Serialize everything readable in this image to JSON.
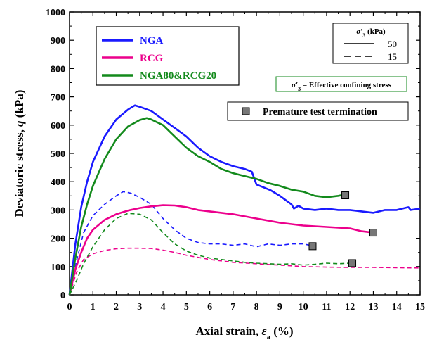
{
  "chart_data": {
    "type": "line",
    "xlabel_main": "Axial strain, ",
    "xlabel_var": "ε",
    "xlabel_sub": "a",
    "xlabel_unit": " (%)",
    "ylabel_main": "Deviatoric stress, ",
    "ylabel_var": "q",
    "ylabel_unit": " (kPa)",
    "xlim": [
      0,
      15
    ],
    "ylim": [
      0,
      1000
    ],
    "xticks": [
      "0",
      "1",
      "2",
      "3",
      "4",
      "5",
      "6",
      "7",
      "8",
      "9",
      "10",
      "11",
      "12",
      "13",
      "14",
      "15"
    ],
    "yticks": [
      "0",
      "100",
      "200",
      "300",
      "400",
      "500",
      "600",
      "700",
      "800",
      "900",
      "1000"
    ],
    "grid": false,
    "legend_placement": "top-left",
    "series": [
      {
        "name": "NGA",
        "color": "#1a1aff",
        "confining": "50",
        "dash": "solid",
        "x": [
          0,
          0.25,
          0.5,
          0.75,
          1,
          1.5,
          2,
          2.5,
          2.8,
          3,
          3.5,
          4,
          4.5,
          5,
          5.5,
          6,
          6.5,
          7,
          7.5,
          7.8,
          8,
          8.3,
          8.6,
          9,
          9.5,
          9.6,
          9.8,
          10,
          10.5,
          11,
          11.5,
          12,
          12.5,
          13,
          13.5,
          14,
          14.5,
          14.6,
          15
        ],
        "y": [
          0,
          180,
          310,
          400,
          470,
          560,
          620,
          655,
          670,
          665,
          650,
          620,
          590,
          560,
          520,
          490,
          470,
          455,
          445,
          435,
          390,
          380,
          370,
          350,
          320,
          305,
          315,
          305,
          300,
          305,
          300,
          300,
          295,
          290,
          300,
          300,
          310,
          300,
          305
        ]
      },
      {
        "name": "NGA",
        "color": "#1a1aff",
        "confining": "15",
        "dash": "dashed",
        "x": [
          0,
          0.3,
          0.6,
          1,
          1.5,
          2,
          2.3,
          2.6,
          3,
          3.5,
          4,
          4.5,
          5,
          5.5,
          6,
          6.5,
          7,
          7.5,
          8,
          8.5,
          9,
          9.5,
          10,
          10.3
        ],
        "y": [
          0,
          120,
          220,
          280,
          320,
          350,
          365,
          360,
          345,
          320,
          270,
          230,
          200,
          185,
          180,
          180,
          175,
          180,
          170,
          180,
          175,
          180,
          180,
          175
        ]
      },
      {
        "name": "RCG",
        "color": "#ec008c",
        "confining": "50",
        "dash": "solid",
        "x": [
          0,
          0.25,
          0.5,
          0.75,
          1,
          1.5,
          2,
          2.5,
          3,
          3.5,
          4,
          4.5,
          5,
          5.5,
          6,
          7,
          8,
          9,
          10,
          11,
          12,
          12.5,
          13
        ],
        "y": [
          0,
          90,
          150,
          200,
          230,
          265,
          285,
          298,
          307,
          313,
          317,
          316,
          310,
          300,
          295,
          285,
          270,
          255,
          245,
          240,
          235,
          225,
          220
        ]
      },
      {
        "name": "RCG",
        "color": "#ec008c",
        "confining": "15",
        "dash": "dashed",
        "x": [
          0,
          0.3,
          0.6,
          1,
          1.5,
          2,
          2.5,
          3,
          3.5,
          4,
          4.5,
          5,
          6,
          7,
          8,
          9,
          10,
          11,
          12,
          13,
          14,
          15
        ],
        "y": [
          0,
          80,
          125,
          145,
          157,
          163,
          165,
          165,
          164,
          158,
          150,
          140,
          125,
          115,
          110,
          105,
          100,
          98,
          97,
          97,
          96,
          95
        ]
      },
      {
        "name": "NGA80&RCG20",
        "color": "#138a1c",
        "confining": "50",
        "dash": "solid",
        "x": [
          0,
          0.25,
          0.5,
          0.75,
          1,
          1.5,
          2,
          2.5,
          3,
          3.3,
          3.5,
          4,
          4.5,
          5,
          5.5,
          6,
          6.5,
          7,
          7.5,
          8,
          8.5,
          9,
          9.5,
          10,
          10.5,
          11,
          11.5,
          11.8
        ],
        "y": [
          0,
          130,
          240,
          320,
          385,
          480,
          550,
          595,
          618,
          625,
          620,
          600,
          560,
          520,
          490,
          470,
          445,
          430,
          420,
          410,
          395,
          385,
          372,
          365,
          350,
          345,
          350,
          355
        ]
      },
      {
        "name": "NGA80&RCG20",
        "color": "#138a1c",
        "confining": "15",
        "dash": "dashed",
        "x": [
          0,
          0.3,
          0.6,
          1,
          1.5,
          2,
          2.5,
          3,
          3.5,
          4,
          4.5,
          5,
          5.5,
          6,
          6.5,
          7,
          7.5,
          8,
          8.5,
          9,
          9.5,
          10,
          10.5,
          11,
          11.5,
          12
        ],
        "y": [
          0,
          50,
          110,
          170,
          230,
          270,
          288,
          285,
          265,
          220,
          180,
          155,
          140,
          130,
          125,
          120,
          115,
          112,
          110,
          108,
          110,
          105,
          108,
          112,
          110,
          112
        ]
      }
    ],
    "termination_points": [
      {
        "x": 11.8,
        "y": 352
      },
      {
        "x": 13.0,
        "y": 220
      },
      {
        "x": 10.4,
        "y": 172
      },
      {
        "x": 12.1,
        "y": 112
      }
    ]
  },
  "legend": {
    "items": [
      {
        "label": "NGA",
        "color": "#1a1aff"
      },
      {
        "label": "RCG",
        "color": "#ec008c"
      },
      {
        "label": "NGA80&RCG20",
        "color": "#138a1c"
      }
    ]
  },
  "confining_box": {
    "title_sigma": "σ′",
    "title_sub": "3",
    "title_unit": " (kPa)",
    "solid_label": "50",
    "dashed_label": "15"
  },
  "note_box": {
    "sigma": "σ′",
    "sub": "3",
    "text": " = Effective confining stress",
    "border_color": "#138a1c"
  },
  "termination_legend": {
    "label": "Premature test termination"
  }
}
